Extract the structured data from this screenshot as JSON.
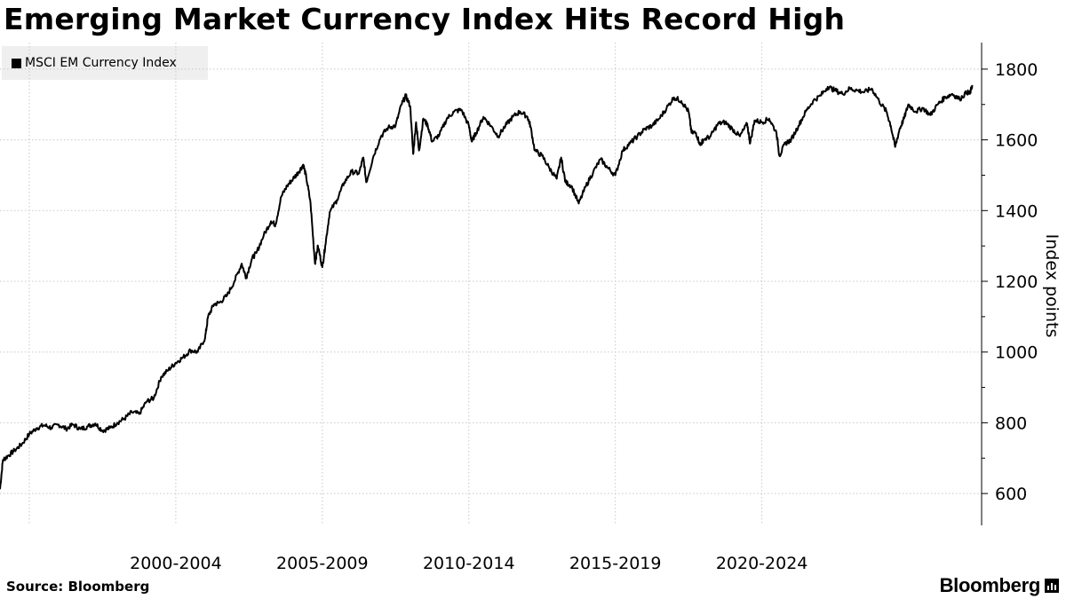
{
  "title": "Emerging Market Currency Index Hits Record High",
  "source": "Source: Bloomberg",
  "brand": "Bloomberg",
  "line_color": "#000000",
  "grid_color": "#c8c8c8",
  "chart_data": {
    "type": "line",
    "series": [
      {
        "name": "MSCI EM Currency Index",
        "points": [
          [
            1999.0,
            612
          ],
          [
            1999.1,
            695
          ],
          [
            1999.25,
            705
          ],
          [
            1999.5,
            722
          ],
          [
            1999.75,
            740
          ],
          [
            2000.0,
            768
          ],
          [
            2000.25,
            785
          ],
          [
            2000.5,
            793
          ],
          [
            2000.75,
            786
          ],
          [
            2001.0,
            795
          ],
          [
            2001.25,
            783
          ],
          [
            2001.5,
            795
          ],
          [
            2001.75,
            782
          ],
          [
            2002.0,
            790
          ],
          [
            2002.25,
            798
          ],
          [
            2002.5,
            778
          ],
          [
            2002.75,
            785
          ],
          [
            2003.0,
            800
          ],
          [
            2003.25,
            812
          ],
          [
            2003.5,
            830
          ],
          [
            2003.75,
            825
          ],
          [
            2004.0,
            860
          ],
          [
            2004.25,
            870
          ],
          [
            2004.5,
            930
          ],
          [
            2004.75,
            950
          ],
          [
            2005.0,
            970
          ],
          [
            2005.25,
            985
          ],
          [
            2005.5,
            1005
          ],
          [
            2005.75,
            1000
          ],
          [
            2006.0,
            1040
          ],
          [
            2006.1,
            1100
          ],
          [
            2006.3,
            1135
          ],
          [
            2006.5,
            1140
          ],
          [
            2006.75,
            1160
          ],
          [
            2007.0,
            1200
          ],
          [
            2007.25,
            1250
          ],
          [
            2007.4,
            1210
          ],
          [
            2007.6,
            1265
          ],
          [
            2007.75,
            1280
          ],
          [
            2008.0,
            1330
          ],
          [
            2008.25,
            1370
          ],
          [
            2008.4,
            1360
          ],
          [
            2008.6,
            1440
          ],
          [
            2008.8,
            1470
          ],
          [
            2009.0,
            1490
          ],
          [
            2009.2,
            1510
          ],
          [
            2009.35,
            1530
          ],
          [
            2009.45,
            1495
          ],
          [
            2009.6,
            1420
          ],
          [
            2009.75,
            1250
          ],
          [
            2009.85,
            1300
          ],
          [
            2010.0,
            1240
          ],
          [
            2010.1,
            1300
          ],
          [
            2010.25,
            1395
          ],
          [
            2010.5,
            1430
          ],
          [
            2010.75,
            1480
          ],
          [
            2011.0,
            1510
          ],
          [
            2011.25,
            1505
          ],
          [
            2011.4,
            1550
          ],
          [
            2011.5,
            1480
          ],
          [
            2011.75,
            1555
          ],
          [
            2012.0,
            1610
          ],
          [
            2012.25,
            1635
          ],
          [
            2012.5,
            1640
          ],
          [
            2012.7,
            1700
          ],
          [
            2012.85,
            1725
          ],
          [
            2013.0,
            1695
          ],
          [
            2013.1,
            1560
          ],
          [
            2013.2,
            1650
          ],
          [
            2013.3,
            1570
          ],
          [
            2013.45,
            1660
          ],
          [
            2013.6,
            1640
          ],
          [
            2013.75,
            1595
          ],
          [
            2014.0,
            1615
          ],
          [
            2014.25,
            1660
          ],
          [
            2014.5,
            1680
          ],
          [
            2014.75,
            1685
          ],
          [
            2015.0,
            1640
          ],
          [
            2015.1,
            1595
          ],
          [
            2015.25,
            1620
          ],
          [
            2015.5,
            1665
          ],
          [
            2015.75,
            1640
          ],
          [
            2016.0,
            1610
          ],
          [
            2016.25,
            1640
          ],
          [
            2016.5,
            1665
          ],
          [
            2016.75,
            1680
          ],
          [
            2017.0,
            1665
          ],
          [
            2017.1,
            1640
          ],
          [
            2017.25,
            1570
          ],
          [
            2017.5,
            1555
          ],
          [
            2017.75,
            1520
          ],
          [
            2018.0,
            1490
          ],
          [
            2018.15,
            1550
          ],
          [
            2018.3,
            1480
          ],
          [
            2018.5,
            1470
          ],
          [
            2018.75,
            1420
          ],
          [
            2019.0,
            1470
          ],
          [
            2019.25,
            1510
          ],
          [
            2019.5,
            1545
          ],
          [
            2019.75,
            1520
          ],
          [
            2020.0,
            1500
          ],
          [
            2020.25,
            1570
          ],
          [
            2020.5,
            1590
          ],
          [
            2020.75,
            1610
          ],
          [
            2021.0,
            1630
          ],
          [
            2021.25,
            1640
          ],
          [
            2021.5,
            1660
          ],
          [
            2021.75,
            1690
          ],
          [
            2022.0,
            1720
          ],
          [
            2022.25,
            1710
          ],
          [
            2022.5,
            1680
          ],
          [
            2022.6,
            1620
          ],
          [
            2022.75,
            1620
          ],
          [
            2022.9,
            1585
          ],
          [
            2023.0,
            1600
          ],
          [
            2023.25,
            1610
          ],
          [
            2023.5,
            1645
          ],
          [
            2023.75,
            1650
          ],
          [
            2024.0,
            1630
          ],
          [
            2024.25,
            1610
          ],
          [
            2024.5,
            1645
          ],
          [
            2024.6,
            1590
          ],
          [
            2024.75,
            1655
          ],
          [
            2025.0,
            1650
          ],
          [
            2025.25,
            1660
          ],
          [
            2025.5,
            1620
          ],
          [
            2025.6,
            1555
          ],
          [
            2025.8,
            1590
          ],
          [
            2026.0,
            1600
          ],
          [
            2026.25,
            1640
          ],
          [
            2026.5,
            1680
          ],
          [
            2026.75,
            1710
          ],
          [
            2027.0,
            1725
          ],
          [
            2027.25,
            1750
          ],
          [
            2027.5,
            1740
          ],
          [
            2027.75,
            1730
          ],
          [
            2028.0,
            1745
          ],
          [
            2028.25,
            1740
          ],
          [
            2028.5,
            1735
          ],
          [
            2028.75,
            1745
          ],
          [
            2029.0,
            1710
          ],
          [
            2029.25,
            1680
          ],
          [
            2029.4,
            1640
          ],
          [
            2029.55,
            1580
          ],
          [
            2029.7,
            1630
          ],
          [
            2029.85,
            1660
          ],
          [
            2030.0,
            1700
          ],
          [
            2030.25,
            1680
          ],
          [
            2030.5,
            1690
          ],
          [
            2030.75,
            1670
          ],
          [
            2031.0,
            1700
          ],
          [
            2031.25,
            1720
          ],
          [
            2031.5,
            1730
          ],
          [
            2031.75,
            1715
          ],
          [
            2032.0,
            1735
          ],
          [
            2032.1,
            1730
          ],
          [
            2032.18,
            1755
          ]
        ]
      }
    ],
    "x_tick_labels": [
      "2000-2004",
      "2005-2009",
      "2010-2014",
      "2015-2019",
      "2020-2024"
    ],
    "xlim": [
      1999.0,
      2032.5
    ],
    "y_ticks": [
      600,
      800,
      1000,
      1200,
      1400,
      1600,
      1800
    ],
    "ylim": [
      510,
      1875
    ],
    "ylabel": "Index points",
    "y_axis_side": "right",
    "grid": true,
    "legend_position": "top-left"
  }
}
